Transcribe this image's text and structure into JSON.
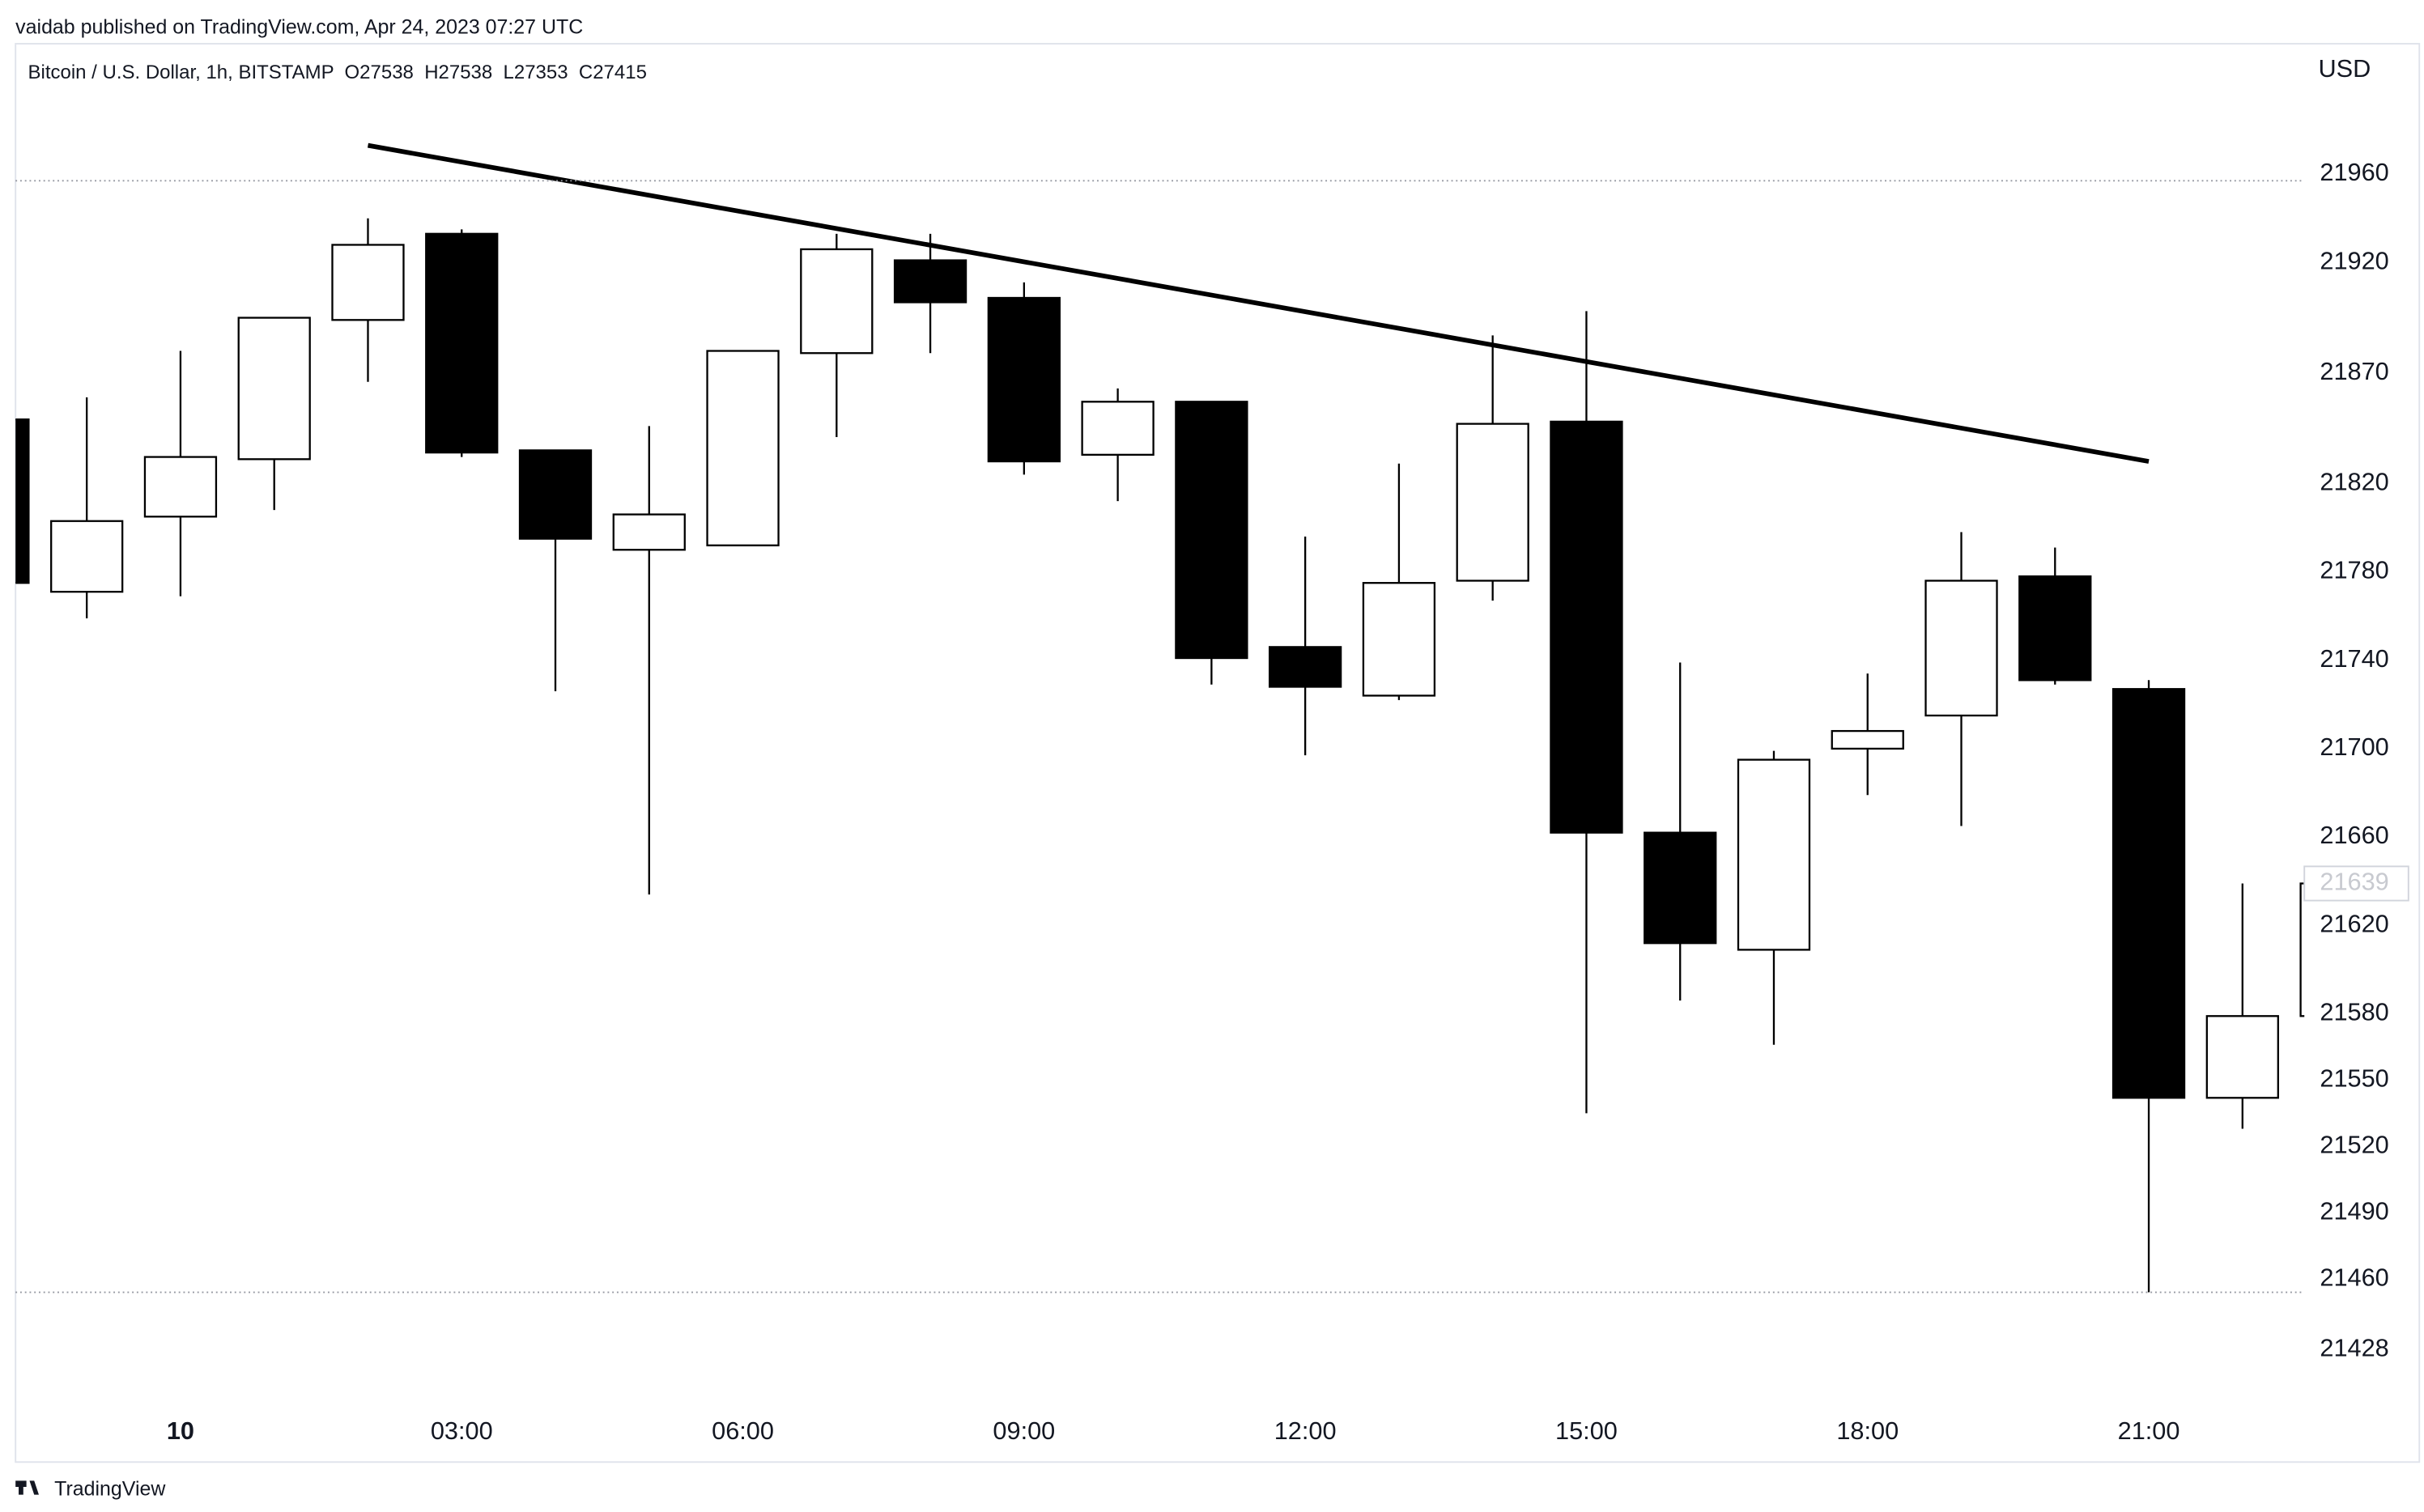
{
  "chart_data": {
    "type": "candlestick",
    "publisher": "vaidab published on TradingView.com, Apr 24, 2023 07:27 UTC",
    "title": "Bitcoin / U.S. Dollar, 1h, BITSTAMP  O27538  H27538  L27353  C27415",
    "currency": "USD",
    "brand": "TradingView",
    "up_color": "#ffffff",
    "down_color": "#000000",
    "x": [
      -2,
      -1,
      0,
      1,
      2,
      3,
      4,
      5,
      6,
      7,
      8,
      9,
      10,
      11,
      12,
      13,
      14,
      15,
      16,
      17,
      18,
      19,
      20,
      21,
      22,
      23
    ],
    "open": [
      21849,
      21771,
      21805,
      21831,
      21894,
      21933,
      21835,
      21790,
      21792,
      21879,
      21921,
      21904,
      21833,
      21857,
      21746,
      21724,
      21776,
      21848,
      21662,
      21609,
      21700,
      21715,
      21778,
      21727,
      21542,
      21579
    ],
    "high": [
      21855,
      21859,
      21880,
      21895,
      21940,
      21935,
      21835,
      21846,
      21880,
      21933,
      21933,
      21911,
      21863,
      21857,
      21796,
      21829,
      21887,
      21898,
      21739,
      21699,
      21734,
      21798,
      21791,
      21731,
      21639,
      21639
    ],
    "low": [
      21770,
      21759,
      21769,
      21808,
      21866,
      21832,
      21726,
      21634,
      21792,
      21841,
      21879,
      21824,
      21812,
      21729,
      21697,
      21722,
      21767,
      21535,
      21586,
      21566,
      21679,
      21665,
      21729,
      21454,
      21528,
      21579
    ],
    "close": [
      21775,
      21803,
      21832,
      21895,
      21928,
      21834,
      21795,
      21806,
      21880,
      21926,
      21902,
      21830,
      21857,
      21741,
      21728,
      21775,
      21847,
      21662,
      21612,
      21695,
      21708,
      21776,
      21731,
      21542,
      21579,
      21639
    ],
    "xlim": [
      -1.76,
      22.66
    ],
    "xticks": [
      {
        "value": 0,
        "label": "10"
      },
      {
        "value": 3,
        "label": "03:00"
      },
      {
        "value": 6,
        "label": "06:00"
      },
      {
        "value": 9,
        "label": "09:00"
      },
      {
        "value": 12,
        "label": "12:00"
      },
      {
        "value": 15,
        "label": "15:00"
      },
      {
        "value": 18,
        "label": "18:00"
      },
      {
        "value": 21,
        "label": "21:00"
      }
    ],
    "ylim": [
      21406,
      22019
    ],
    "yticks": [
      21428,
      21460,
      21490,
      21520,
      21550,
      21580,
      21620,
      21660,
      21700,
      21740,
      21780,
      21820,
      21870,
      21920,
      21960
    ],
    "trendline": {
      "x": [
        2,
        21
      ],
      "y": [
        21973,
        21830
      ]
    },
    "levels": [
      21957,
      21454
    ],
    "last_price": 21639
  }
}
